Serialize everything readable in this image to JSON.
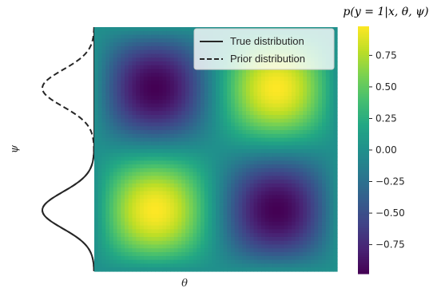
{
  "chart_data": {
    "type": "heatmap",
    "function": "sin(theta)*sin(psi)",
    "heatmap": {
      "x_label": "θ",
      "y_label": "ψ",
      "colormap": "viridis",
      "value_range": [
        -1,
        1
      ],
      "peaks": [
        {
          "position": "top-left",
          "value": -1
        },
        {
          "position": "top-right",
          "value": 1
        },
        {
          "position": "bottom-left",
          "value": 1
        },
        {
          "position": "bottom-right",
          "value": -1
        }
      ]
    },
    "colorbar": {
      "title": "p(y = 1|x, θ, ψ)",
      "ticks": [
        0.75,
        0.5,
        0.25,
        0.0,
        -0.25,
        -0.5,
        -0.75
      ],
      "tick_labels": [
        "0.75",
        "0.50",
        "0.25",
        "0.00",
        "−0.25",
        "−0.50",
        "−0.75"
      ],
      "range": [
        -0.98,
        0.98
      ]
    },
    "legend": {
      "placement": "top-right",
      "entries": [
        {
          "label": "True distribution",
          "style": "solid"
        },
        {
          "label": "Prior distribution",
          "style": "dashed"
        }
      ]
    },
    "marginal": {
      "axis": "ψ",
      "true_distribution": {
        "center_fraction_from_top": 0.75,
        "sigma_fraction": 0.075
      },
      "prior_distribution": {
        "centers_fraction_from_top": [
          0.25,
          0.75
        ],
        "sigma_fraction": 0.075,
        "amplitude": 1.0
      },
      "colors": {
        "line": "#262626"
      }
    }
  }
}
